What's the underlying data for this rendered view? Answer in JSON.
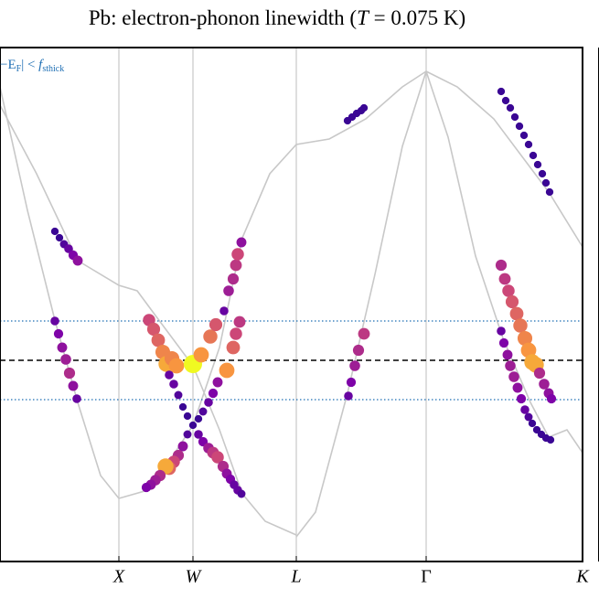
{
  "chart_data": {
    "type": "scatter",
    "title_parts": [
      "Pb: electron-phonon linewidth  (",
      "T",
      " = 0.075 K)"
    ],
    "annotation_parts": [
      "−E",
      "F",
      "| < ",
      "f",
      "sthick"
    ],
    "xlim": [
      0,
      637
    ],
    "ylim": [
      -220,
      342
    ],
    "xticks": [
      {
        "value": 130,
        "label": "X"
      },
      {
        "value": 211,
        "label": "W"
      },
      {
        "value": 324,
        "label": "L"
      },
      {
        "value": 466,
        "label": "Γ"
      },
      {
        "value": 637,
        "label": "K"
      }
    ],
    "grid": true,
    "fermi_level": 0,
    "window": [
      43,
      -43
    ],
    "line_color": "#c8c8c8",
    "window_color": "#1f6fb4",
    "colormap": [
      "#0d0887",
      "#7e03a8",
      "#cc4778",
      "#f89540",
      "#f0f921"
    ],
    "lines": [
      {
        "x": [
          0,
          40,
          85,
          130,
          150,
          170,
          211,
          240,
          265,
          290,
          324
        ],
        "y": [
          279,
          204,
          109,
          82,
          76,
          49,
          -6,
          -76,
          -146,
          -176,
          -191
        ]
      },
      {
        "x": [
          0,
          30,
          60,
          85,
          110,
          130,
          165,
          211,
          240,
          265,
          295,
          324,
          360,
          400,
          440,
          466
        ],
        "y": [
          299,
          164,
          44,
          -46,
          -126,
          -151,
          -141,
          -71,
          14,
          134,
          204,
          236,
          242,
          264,
          299,
          316
        ]
      },
      {
        "x": [
          324,
          345,
          380,
          410,
          440,
          466
        ],
        "y": [
          -193,
          -166,
          -36,
          94,
          234,
          316
        ]
      },
      {
        "x": [
          466,
          500,
          540,
          600,
          637
        ],
        "y": [
          316,
          299,
          264,
          184,
          124
        ]
      },
      {
        "x": [
          466,
          490,
          520,
          550,
          580,
          600,
          620,
          637
        ],
        "y": [
          316,
          244,
          114,
          24,
          -46,
          -84,
          -76,
          -101
        ]
      }
    ],
    "points": {
      "x": [
        60,
        65,
        70,
        75,
        80,
        85,
        60,
        64,
        68,
        72,
        76,
        80,
        84,
        163,
        168,
        173,
        178,
        182,
        188,
        193,
        211,
        220,
        230,
        236,
        248,
        255,
        258,
        262,
        245,
        250,
        255,
        258,
        260,
        264,
        185,
        190,
        195,
        200,
        205,
        211,
        217,
        222,
        228,
        233,
        238,
        205,
        200,
        195,
        190,
        185,
        181,
        175,
        170,
        165,
        160,
        217,
        222,
        228,
        233,
        238,
        244,
        248,
        252,
        256,
        260,
        264,
        380,
        385,
        390,
        395,
        398,
        381,
        384,
        388,
        392,
        398,
        548,
        553,
        558,
        563,
        568,
        573,
        578,
        583,
        588,
        593,
        597,
        601,
        548,
        552,
        556,
        560,
        565,
        569,
        574,
        578,
        582,
        586,
        590,
        595,
        600,
        603,
        548,
        551,
        555,
        558,
        562,
        566,
        570,
        574,
        578,
        582,
        587,
        592,
        597,
        602
      ],
      "y": [
        141,
        134,
        127,
        122,
        115,
        109,
        43,
        29,
        14,
        1,
        -14,
        -28,
        -42,
        44,
        34,
        22,
        9,
        -4,
        2,
        -6,
        -4,
        6,
        26,
        39,
        -11,
        14,
        29,
        42,
        54,
        76,
        89,
        104,
        116,
        129,
        -16,
        -26,
        -38,
        -51,
        -61,
        -71,
        -64,
        -56,
        -46,
        -36,
        -24,
        -81,
        -94,
        -104,
        -111,
        -118,
        -116,
        -126,
        -131,
        -136,
        -139,
        -81,
        -89,
        -96,
        -101,
        -106,
        -116,
        -124,
        -130,
        -136,
        -142,
        -146,
        262,
        266,
        270,
        273,
        276,
        -39,
        -24,
        -6,
        11,
        29,
        294,
        284,
        276,
        266,
        256,
        246,
        236,
        224,
        214,
        204,
        194,
        184,
        104,
        89,
        76,
        64,
        51,
        38,
        24,
        11,
        -2,
        -5,
        -14,
        -26,
        -36,
        -42,
        32,
        19,
        6,
        -6,
        -18,
        -30,
        -42,
        -54,
        -62,
        -69,
        -76,
        -81,
        -85,
        -87
      ],
      "values": [
        0.1,
        0.1,
        0.15,
        0.2,
        0.25,
        0.3,
        0.2,
        0.25,
        0.3,
        0.35,
        0.4,
        0.3,
        0.2,
        0.5,
        0.55,
        0.6,
        0.7,
        0.8,
        0.7,
        0.75,
        1,
        0.75,
        0.65,
        0.55,
        0.75,
        0.6,
        0.5,
        0.45,
        0.2,
        0.35,
        0.4,
        0.45,
        0.5,
        0.3,
        0.2,
        0.2,
        0.15,
        0.1,
        0.1,
        0.1,
        0.1,
        0.15,
        0.2,
        0.25,
        0.3,
        0.15,
        0.3,
        0.4,
        0.5,
        0.6,
        0.8,
        0.4,
        0.35,
        0.3,
        0.25,
        0.2,
        0.25,
        0.35,
        0.45,
        0.5,
        0.4,
        0.3,
        0.25,
        0.2,
        0.2,
        0.15,
        0.1,
        0.1,
        0.1,
        0.1,
        0.1,
        0.2,
        0.25,
        0.35,
        0.4,
        0.45,
        0.1,
        0.1,
        0.1,
        0.1,
        0.1,
        0.1,
        0.1,
        0.1,
        0.1,
        0.1,
        0.1,
        0.1,
        0.4,
        0.45,
        0.5,
        0.55,
        0.6,
        0.65,
        0.7,
        0.75,
        0.8,
        0.8,
        0.4,
        0.35,
        0.3,
        0.25,
        0.2,
        0.25,
        0.3,
        0.35,
        0.35,
        0.3,
        0.25,
        0.2,
        0.15,
        0.1,
        0.1,
        0.1,
        0.1,
        0.1
      ]
    }
  }
}
